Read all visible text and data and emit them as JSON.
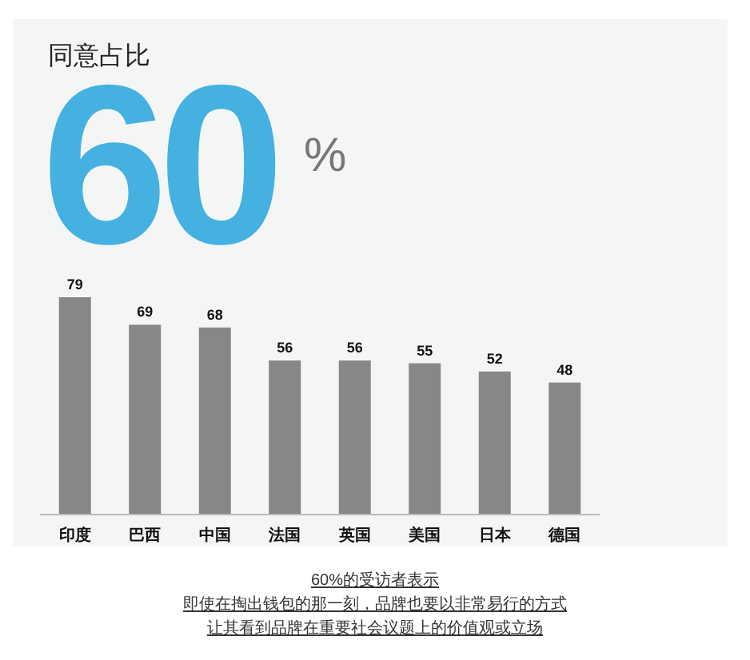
{
  "chart_data": {
    "type": "bar",
    "title": "同意占比",
    "subtitle": "60$^{%}$",
    "categories": [
      "印度",
      "巴西",
      "中国",
      "法国",
      "英国",
      "美国",
      "日本",
      "德国"
    ],
    "values": [
      79,
      69,
      68,
      56,
      56,
      55,
      52,
      48
    ],
    "color": "#878787",
    "data_labels": true,
    "annotations": [
      "60%的受访者表示",
      "即使在掏出钱包的那一刻，品牌也要以非常易行的方式",
      "让其看到品牌在重要社会议题上的价值观或立场"
    ]
  }
}
